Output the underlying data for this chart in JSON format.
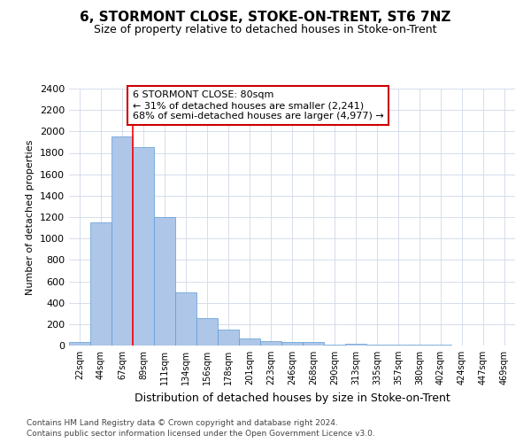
{
  "title": "6, STORMONT CLOSE, STOKE-ON-TRENT, ST6 7NZ",
  "subtitle": "Size of property relative to detached houses in Stoke-on-Trent",
  "xlabel": "Distribution of detached houses by size in Stoke-on-Trent",
  "ylabel": "Number of detached properties",
  "categories": [
    "22sqm",
    "44sqm",
    "67sqm",
    "89sqm",
    "111sqm",
    "134sqm",
    "156sqm",
    "178sqm",
    "201sqm",
    "223sqm",
    "246sqm",
    "268sqm",
    "290sqm",
    "313sqm",
    "335sqm",
    "357sqm",
    "380sqm",
    "402sqm",
    "424sqm",
    "447sqm",
    "469sqm"
  ],
  "values": [
    30,
    1150,
    1950,
    1850,
    1200,
    500,
    260,
    150,
    70,
    40,
    35,
    30,
    10,
    15,
    5,
    5,
    5,
    5,
    0,
    0,
    0
  ],
  "bar_color": "#aec6e8",
  "bar_edge_color": "#5b9bd5",
  "red_line_x": 2.5,
  "annotation_text": "6 STORMONT CLOSE: 80sqm\n← 31% of detached houses are smaller (2,241)\n68% of semi-detached houses are larger (4,977) →",
  "annotation_box_color": "#ffffff",
  "annotation_box_edge_color": "#cc0000",
  "ylim": [
    0,
    2400
  ],
  "yticks": [
    0,
    200,
    400,
    600,
    800,
    1000,
    1200,
    1400,
    1600,
    1800,
    2000,
    2200,
    2400
  ],
  "grid_color": "#d0d8e8",
  "background_color": "#ffffff",
  "footer1": "Contains HM Land Registry data © Crown copyright and database right 2024.",
  "footer2": "Contains public sector information licensed under the Open Government Licence v3.0."
}
